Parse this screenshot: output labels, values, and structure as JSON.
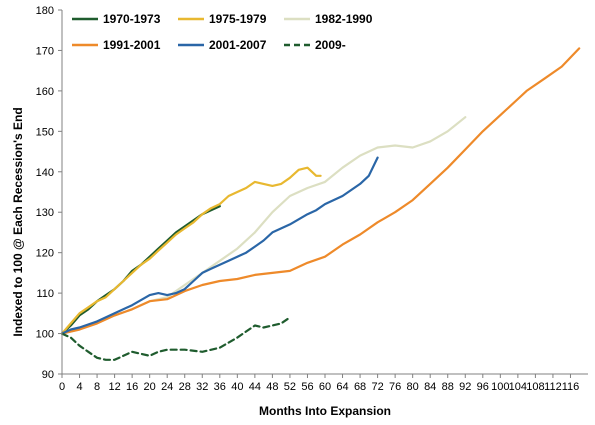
{
  "chart_data": {
    "type": "line",
    "title": "",
    "xlabel": "Months Into Expansion",
    "ylabel": "Indexed to 100 @ Each Recession's End",
    "xlim": [
      0,
      120
    ],
    "ylim": [
      90,
      180
    ],
    "x_ticks": [
      0,
      4,
      8,
      12,
      16,
      20,
      24,
      28,
      32,
      36,
      40,
      44,
      48,
      52,
      56,
      60,
      64,
      68,
      72,
      76,
      80,
      84,
      88,
      92,
      96,
      100,
      104,
      108,
      112,
      116
    ],
    "y_ticks": [
      90,
      100,
      110,
      120,
      130,
      140,
      150,
      160,
      170,
      180
    ],
    "legend_position": "top-left",
    "grid": false,
    "series": [
      {
        "name": "1970-1973",
        "color": "#1f5c2e",
        "dash": "solid",
        "points": [
          [
            0,
            100
          ],
          [
            2,
            102
          ],
          [
            4,
            104.5
          ],
          [
            6,
            106
          ],
          [
            8,
            108
          ],
          [
            10,
            109.5
          ],
          [
            12,
            111
          ],
          [
            14,
            113
          ],
          [
            16,
            115.5
          ],
          [
            18,
            117
          ],
          [
            20,
            119
          ],
          [
            22,
            121
          ],
          [
            24,
            123
          ],
          [
            26,
            125
          ],
          [
            28,
            126.5
          ],
          [
            30,
            128
          ],
          [
            32,
            129.5
          ],
          [
            34,
            130.5
          ],
          [
            36,
            131.5
          ]
        ]
      },
      {
        "name": "1975-1979",
        "color": "#e8b830",
        "dash": "solid",
        "points": [
          [
            0,
            100
          ],
          [
            2,
            102.5
          ],
          [
            4,
            105
          ],
          [
            6,
            106.5
          ],
          [
            8,
            108
          ],
          [
            10,
            109
          ],
          [
            12,
            111
          ],
          [
            14,
            113
          ],
          [
            16,
            115
          ],
          [
            18,
            117
          ],
          [
            20,
            118.5
          ],
          [
            22,
            120.5
          ],
          [
            24,
            122.5
          ],
          [
            26,
            124.5
          ],
          [
            28,
            126
          ],
          [
            30,
            127.5
          ],
          [
            32,
            129.5
          ],
          [
            34,
            131
          ],
          [
            36,
            132
          ],
          [
            38,
            134
          ],
          [
            40,
            135
          ],
          [
            42,
            136
          ],
          [
            44,
            137.5
          ],
          [
            46,
            137
          ],
          [
            48,
            136.5
          ],
          [
            50,
            137
          ],
          [
            52,
            138.5
          ],
          [
            54,
            140.5
          ],
          [
            56,
            141
          ],
          [
            58,
            139
          ],
          [
            59,
            139
          ]
        ]
      },
      {
        "name": "1982-1990",
        "color": "#dcdfc2",
        "dash": "solid",
        "points": [
          [
            0,
            100
          ],
          [
            4,
            101
          ],
          [
            8,
            103
          ],
          [
            12,
            104.5
          ],
          [
            16,
            106
          ],
          [
            20,
            108
          ],
          [
            24,
            109
          ],
          [
            28,
            112
          ],
          [
            32,
            115
          ],
          [
            36,
            118
          ],
          [
            40,
            121
          ],
          [
            44,
            125
          ],
          [
            48,
            130
          ],
          [
            52,
            134
          ],
          [
            56,
            136
          ],
          [
            60,
            137.5
          ],
          [
            64,
            141
          ],
          [
            68,
            144
          ],
          [
            72,
            146
          ],
          [
            76,
            146.5
          ],
          [
            80,
            146
          ],
          [
            84,
            147.5
          ],
          [
            88,
            150
          ],
          [
            92,
            153.5
          ]
        ]
      },
      {
        "name": "1991-2001",
        "color": "#ee8a2a",
        "dash": "solid",
        "points": [
          [
            0,
            100
          ],
          [
            4,
            101
          ],
          [
            8,
            102.5
          ],
          [
            12,
            104.5
          ],
          [
            16,
            106
          ],
          [
            20,
            108
          ],
          [
            24,
            108.5
          ],
          [
            28,
            110.5
          ],
          [
            32,
            112
          ],
          [
            36,
            113
          ],
          [
            40,
            113.5
          ],
          [
            44,
            114.5
          ],
          [
            48,
            115
          ],
          [
            52,
            115.5
          ],
          [
            56,
            117.5
          ],
          [
            60,
            119
          ],
          [
            64,
            122
          ],
          [
            68,
            124.5
          ],
          [
            72,
            127.5
          ],
          [
            76,
            130
          ],
          [
            80,
            133
          ],
          [
            84,
            137
          ],
          [
            88,
            141
          ],
          [
            92,
            145.5
          ],
          [
            96,
            150
          ],
          [
            100,
            154
          ],
          [
            104,
            158
          ],
          [
            106,
            160
          ],
          [
            110,
            163
          ],
          [
            114,
            166
          ],
          [
            118,
            170.5
          ]
        ]
      },
      {
        "name": "2001-2007",
        "color": "#2a66a7",
        "dash": "solid",
        "points": [
          [
            0,
            100
          ],
          [
            2,
            101
          ],
          [
            4,
            101.5
          ],
          [
            8,
            103
          ],
          [
            12,
            105
          ],
          [
            16,
            107
          ],
          [
            20,
            109.5
          ],
          [
            22,
            110
          ],
          [
            24,
            109.5
          ],
          [
            26,
            110
          ],
          [
            28,
            111
          ],
          [
            30,
            113
          ],
          [
            32,
            115
          ],
          [
            34,
            116
          ],
          [
            36,
            117
          ],
          [
            38,
            118
          ],
          [
            40,
            119
          ],
          [
            42,
            120
          ],
          [
            44,
            121.5
          ],
          [
            46,
            123
          ],
          [
            48,
            125
          ],
          [
            52,
            127
          ],
          [
            56,
            129.5
          ],
          [
            58,
            130.5
          ],
          [
            60,
            132
          ],
          [
            64,
            134
          ],
          [
            68,
            137
          ],
          [
            70,
            139
          ],
          [
            72,
            143.5
          ]
        ]
      },
      {
        "name": "2009-",
        "color": "#1f5c2e",
        "dash": "dashed",
        "points": [
          [
            0,
            100
          ],
          [
            2,
            99
          ],
          [
            4,
            97
          ],
          [
            6,
            95.5
          ],
          [
            8,
            94
          ],
          [
            10,
            93.5
          ],
          [
            12,
            93.5
          ],
          [
            14,
            94.5
          ],
          [
            16,
            95.5
          ],
          [
            18,
            95
          ],
          [
            20,
            94.5
          ],
          [
            22,
            95.5
          ],
          [
            24,
            96
          ],
          [
            28,
            96
          ],
          [
            32,
            95.5
          ],
          [
            36,
            96.5
          ],
          [
            40,
            99
          ],
          [
            42,
            100.5
          ],
          [
            44,
            102
          ],
          [
            46,
            101.5
          ],
          [
            48,
            102
          ],
          [
            50,
            102.5
          ],
          [
            52,
            104
          ]
        ]
      }
    ]
  }
}
